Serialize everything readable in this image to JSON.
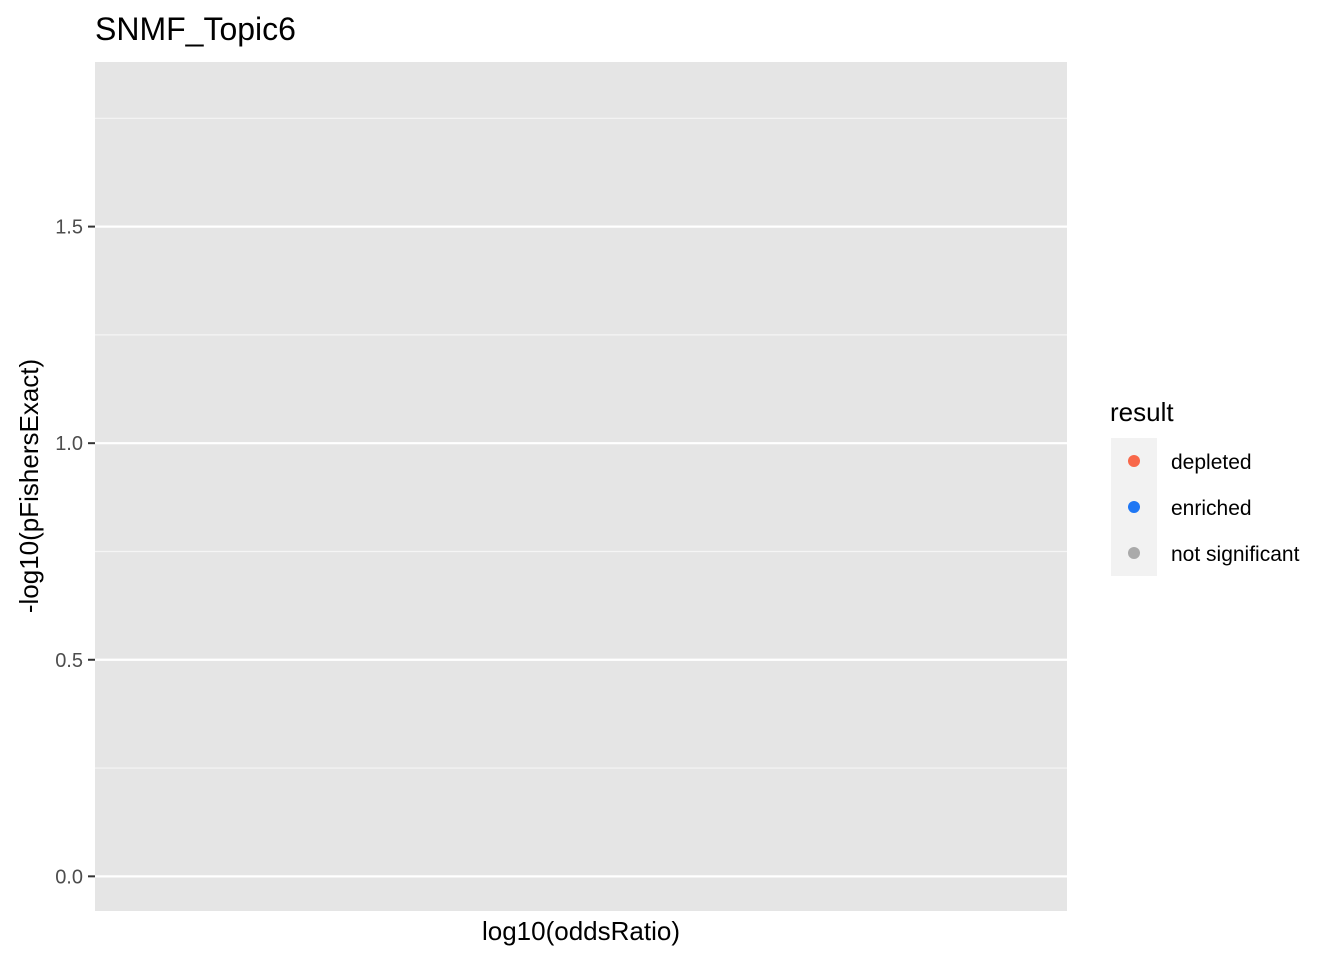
{
  "chart_data": {
    "type": "scatter",
    "title": "SNMF_Topic6",
    "xlabel": "log10(oddsRatio)",
    "ylabel": "-log10(pFishersExact)",
    "ylim": [
      -0.08,
      1.88
    ],
    "y_ticks": [
      0.0,
      0.5,
      1.0,
      1.5
    ],
    "y_tick_labels": [
      "0.0",
      "0.5",
      "1.0",
      "1.5"
    ],
    "x_ticks": [],
    "grid": true,
    "points": [],
    "legend": {
      "title": "result",
      "placement": "right",
      "entries": [
        {
          "label": "depleted",
          "color": "#F8684A"
        },
        {
          "label": "enriched",
          "color": "#1F77F4"
        },
        {
          "label": "not significant",
          "color": "#AAAAAA"
        }
      ]
    }
  }
}
